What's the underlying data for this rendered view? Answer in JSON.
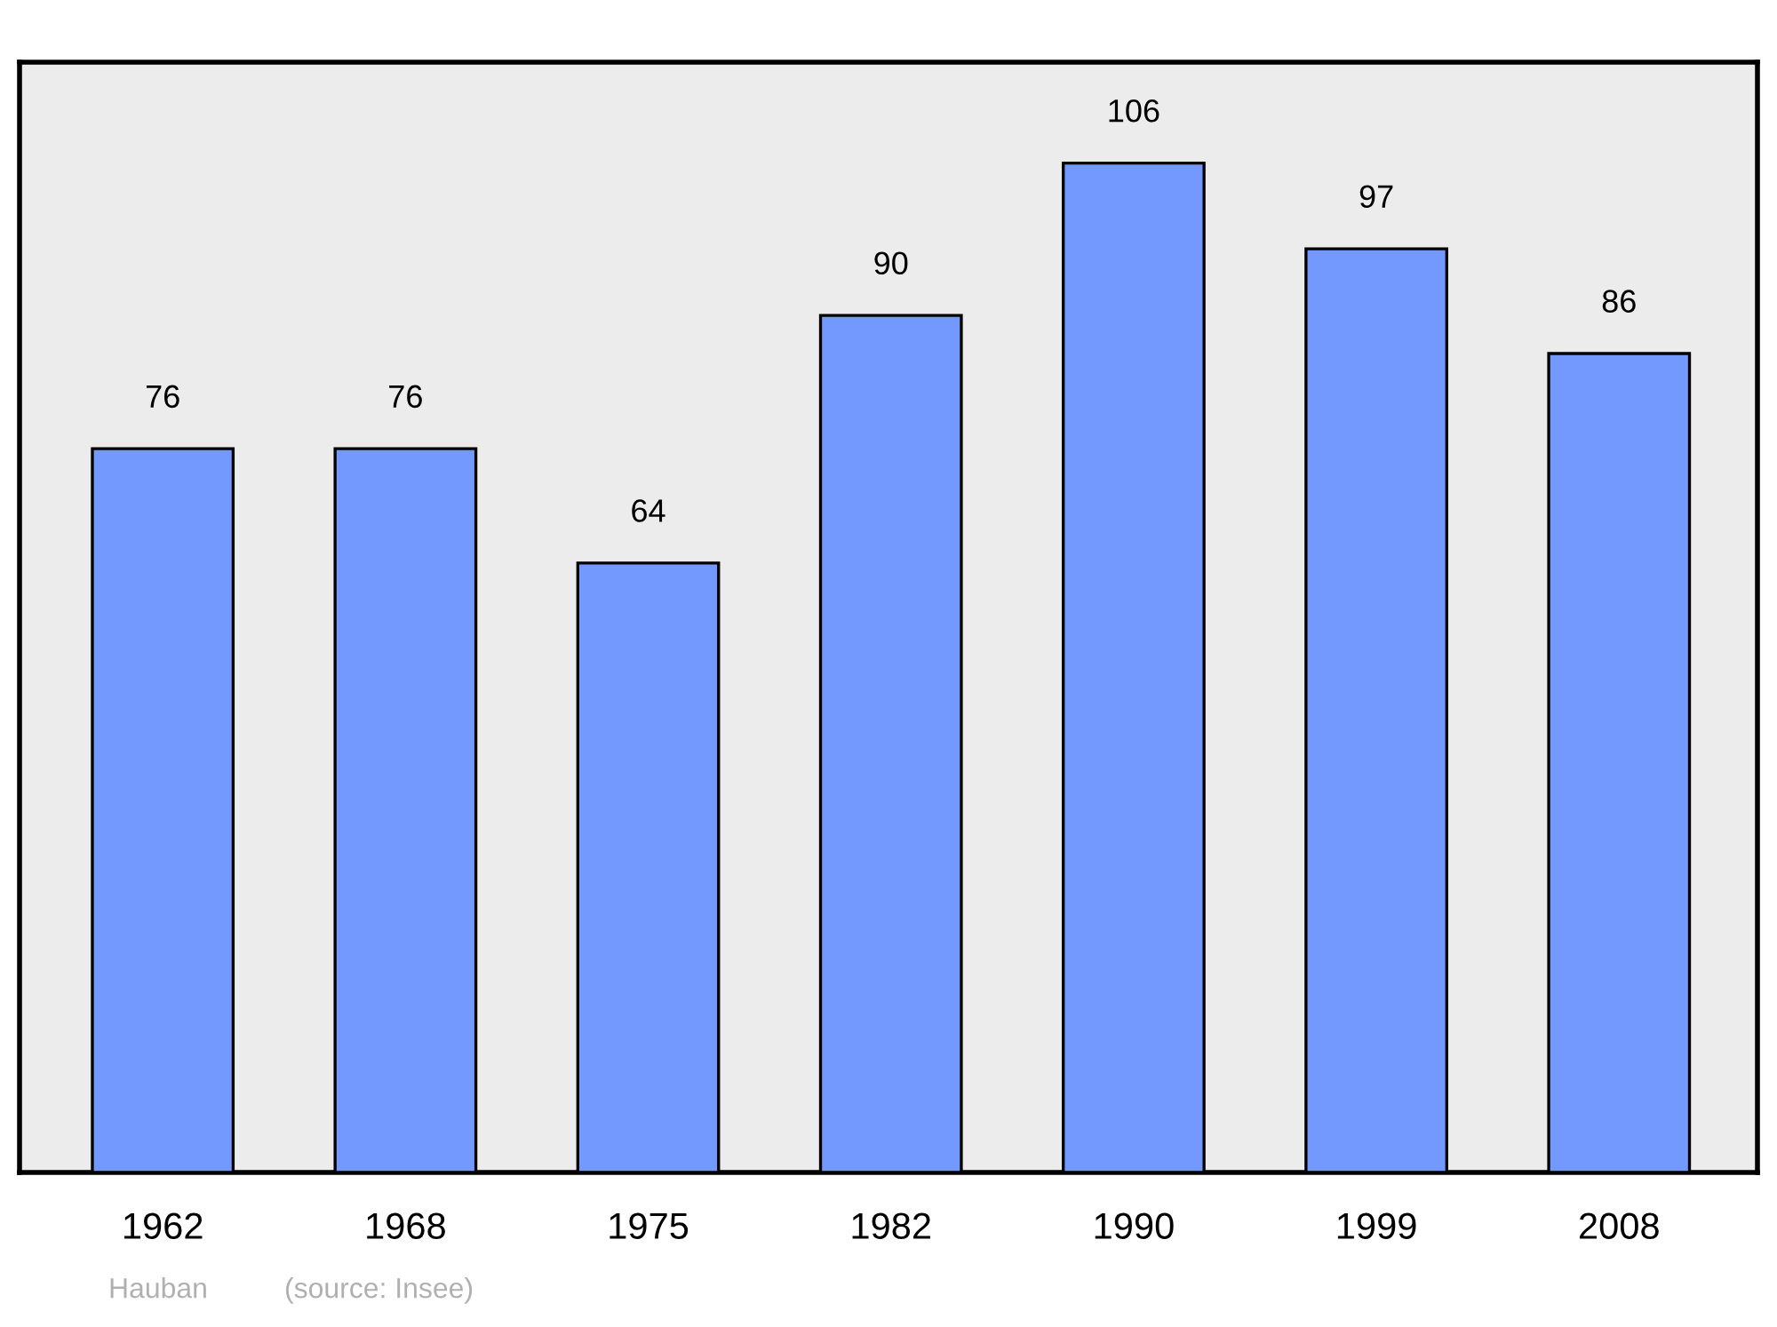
{
  "chart_data": {
    "type": "bar",
    "categories": [
      "1962",
      "1968",
      "1975",
      "1982",
      "1990",
      "1999",
      "2008"
    ],
    "values": [
      76,
      76,
      64,
      90,
      106,
      97,
      86
    ],
    "color": "#7399ff",
    "data_labels": true,
    "grid": false,
    "tick_labels": "x",
    "annotations": [
      "Hauban",
      "(source: Insee)"
    ]
  }
}
